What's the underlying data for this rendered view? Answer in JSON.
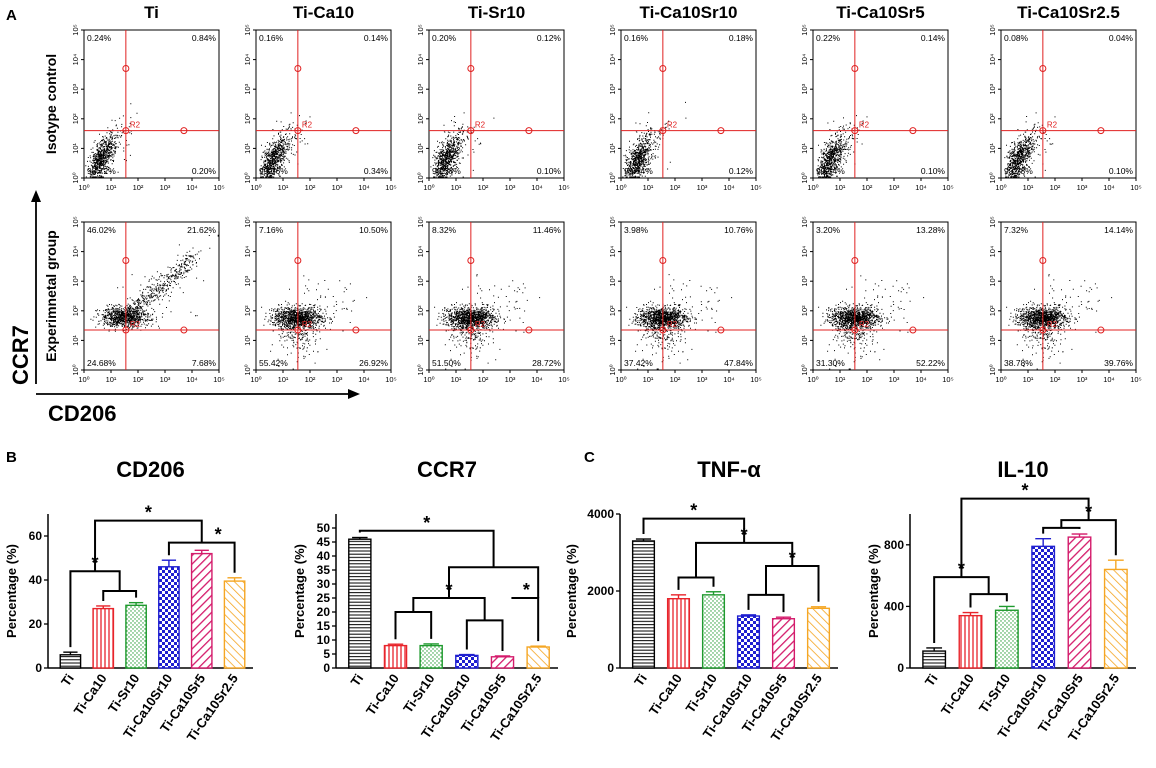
{
  "panel_labels": {
    "a": "A",
    "b": "B",
    "c": "C"
  },
  "flow": {
    "y_axis_label": "CCR7",
    "x_axis_label": "CD206",
    "row_labels": [
      "Isotype control",
      "Experimnetal group"
    ],
    "tick_labels": [
      "10⁰",
      "10¹",
      "10²",
      "10³",
      "10⁴",
      "10⁵"
    ],
    "gate_label": "R2",
    "groups": [
      {
        "name": "Ti",
        "isotype": {
          "ul": "0.24%",
          "ur": "0.84%",
          "ll": "98.72%",
          "lr": "0.20%"
        },
        "experimental": {
          "ul": "46.02%",
          "ur": "21.62%",
          "ll": "24.68%",
          "lr": "7.68%"
        }
      },
      {
        "name": "Ti-Ca10",
        "isotype": {
          "ul": "0.16%",
          "ur": "0.14%",
          "ll": "99.36%",
          "lr": "0.34%"
        },
        "experimental": {
          "ul": "7.16%",
          "ur": "10.50%",
          "ll": "55.42%",
          "lr": "26.92%"
        }
      },
      {
        "name": "Ti-Sr10",
        "isotype": {
          "ul": "0.20%",
          "ur": "0.12%",
          "ll": "99.58%",
          "lr": "0.10%"
        },
        "experimental": {
          "ul": "8.32%",
          "ur": "11.46%",
          "ll": "51.50%",
          "lr": "28.72%"
        }
      },
      {
        "name": "Ti-Ca10Sr10",
        "isotype": {
          "ul": "0.16%",
          "ur": "0.18%",
          "ll": "99.54%",
          "lr": "0.12%"
        },
        "experimental": {
          "ul": "3.98%",
          "ur": "10.76%",
          "ll": "37.42%",
          "lr": "47.84%"
        }
      },
      {
        "name": "Ti-Ca10Sr5",
        "isotype": {
          "ul": "0.22%",
          "ur": "0.14%",
          "ll": "99.54%",
          "lr": "0.10%"
        },
        "experimental": {
          "ul": "3.20%",
          "ur": "13.28%",
          "ll": "31.30%",
          "lr": "52.22%"
        }
      },
      {
        "name": "Ti-Ca10Sr2.5",
        "isotype": {
          "ul": "0.08%",
          "ur": "0.04%",
          "ll": "99.78%",
          "lr": "0.10%"
        },
        "experimental": {
          "ul": "7.32%",
          "ur": "14.14%",
          "ll": "38.78%",
          "lr": "39.76%"
        }
      }
    ]
  },
  "series_colors": [
    "#000000",
    "#e8242b",
    "#1f9a2e",
    "#1f1fd0",
    "#d41b6b",
    "#f5a623"
  ],
  "chart_data": [
    {
      "type": "bar",
      "title": "CD206",
      "xlabel": "",
      "ylabel": "Percentage (%)",
      "categories": [
        "Ti",
        "Ti-Ca10",
        "Ti-Sr10",
        "Ti-Ca10Sr10",
        "Ti-Ca10Sr5",
        "Ti-Ca10Sr2.5"
      ],
      "values": [
        6,
        27,
        28.5,
        46,
        52,
        39.5
      ],
      "errors": [
        1.2,
        1.2,
        1.2,
        3,
        1.5,
        1.5
      ],
      "ylim": [
        0,
        70
      ],
      "yticks": [
        0,
        20,
        40,
        60
      ],
      "significance": "*"
    },
    {
      "type": "bar",
      "title": "CCR7",
      "xlabel": "",
      "ylabel": "Percentage (%)",
      "categories": [
        "Ti",
        "Ti-Ca10",
        "Ti-Sr10",
        "Ti-Ca10Sr10",
        "Ti-Ca10Sr5",
        "Ti-Ca10Sr2.5"
      ],
      "values": [
        46,
        8,
        8,
        4.5,
        4,
        7.5
      ],
      "errors": [
        0.6,
        0.5,
        0.6,
        0.3,
        0.3,
        0.3
      ],
      "ylim": [
        0,
        55
      ],
      "yticks": [
        0,
        5,
        10,
        15,
        20,
        25,
        30,
        35,
        40,
        45,
        50
      ],
      "significance": "*"
    },
    {
      "type": "bar",
      "title": "TNF-α",
      "xlabel": "",
      "ylabel": "Percentage (%)",
      "categories": [
        "Ti",
        "Ti-Ca10",
        "Ti-Sr10",
        "Ti-Ca10Sr10",
        "Ti-Ca10Sr5",
        "Ti-Ca10Sr2.5"
      ],
      "values": [
        3300,
        1800,
        1900,
        1350,
        1280,
        1550
      ],
      "errors": [
        50,
        100,
        80,
        30,
        40,
        40
      ],
      "ylim": [
        0,
        4000
      ],
      "yticks": [
        0,
        2000,
        4000
      ],
      "significance": "*"
    },
    {
      "type": "bar",
      "title": "IL-10",
      "xlabel": "",
      "ylabel": "Percentage (%)",
      "categories": [
        "Ti",
        "Ti-Ca10",
        "Ti-Sr10",
        "Ti-Ca10Sr10",
        "Ti-Ca10Sr5",
        "Ti-Ca10Sr2.5"
      ],
      "values": [
        110,
        340,
        375,
        790,
        850,
        640
      ],
      "errors": [
        20,
        20,
        25,
        50,
        20,
        60
      ],
      "ylim": [
        0,
        1000
      ],
      "yticks": [
        0,
        400,
        800
      ],
      "significance": "*"
    }
  ]
}
